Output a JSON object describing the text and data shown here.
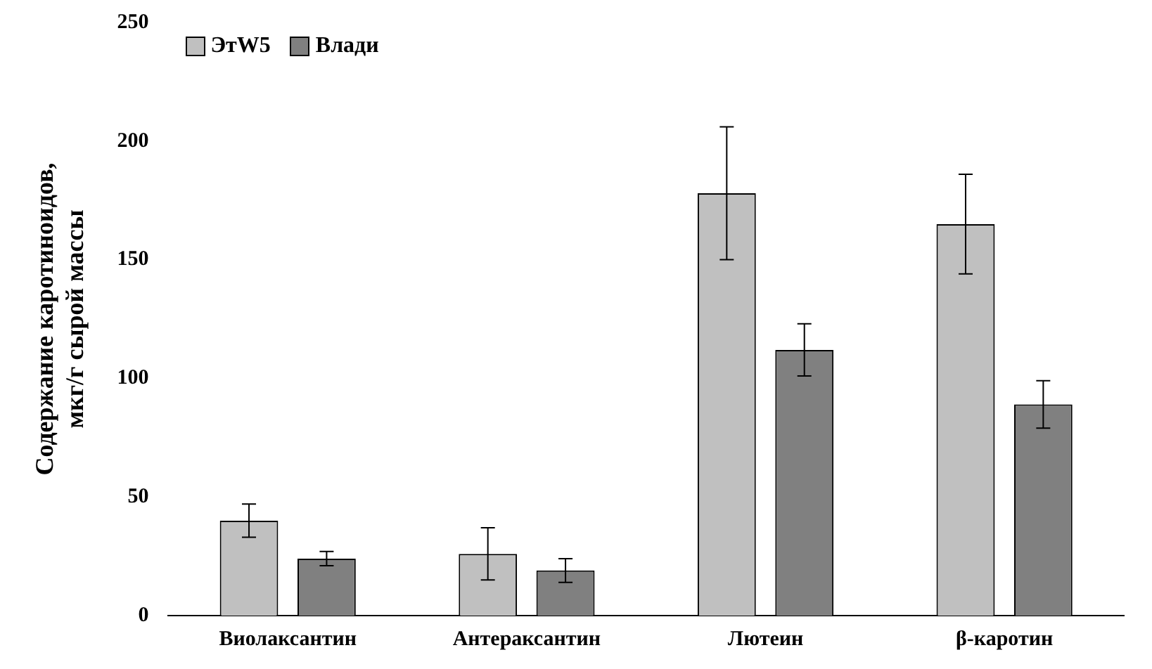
{
  "chart_data": {
    "type": "bar",
    "ylabel": "Содержание каротиноидов,\nмкг/г сырой массы",
    "categories": [
      "Виолаксантин",
      "Антераксантин",
      "Лютеин",
      "β-каротин"
    ],
    "series": [
      {
        "name": "ЭтW5",
        "color": "#c0c0c0",
        "values": [
          40,
          26,
          178,
          165
        ],
        "errors": [
          7,
          11,
          28,
          21
        ]
      },
      {
        "name": "Влади",
        "color": "#808080",
        "values": [
          24,
          19,
          112,
          89
        ],
        "errors": [
          3,
          5,
          11,
          10
        ]
      }
    ],
    "ylim": [
      0,
      250
    ],
    "yticks": [
      0,
      50,
      100,
      150,
      200,
      250
    ],
    "grid": false,
    "legend": "top left"
  }
}
